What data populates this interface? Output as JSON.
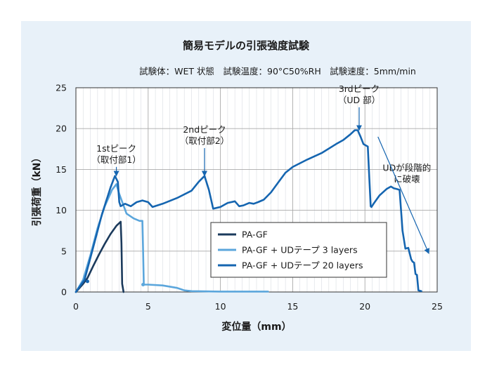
{
  "chart_data": {
    "type": "line",
    "title": "簡易モデルの引張強度試験",
    "subtitle": "試験体：WET 状態　試験温度：90°C50%RH　試験速度：5mm/min",
    "xlabel": "変位量（mm）",
    "ylabel": "引張荷重（kN）",
    "xlim": [
      0,
      25
    ],
    "ylim": [
      0,
      25
    ],
    "xticks": [
      0,
      5,
      10,
      15,
      20,
      25
    ],
    "yticks": [
      0,
      5,
      10,
      15,
      20,
      25
    ],
    "grid": true,
    "legend_position": "center-right",
    "series": [
      {
        "name": "PA-GF",
        "color": "#1b3a5c",
        "x": [
          0,
          0.5,
          0.8,
          1.2,
          1.6,
          2.0,
          2.4,
          2.8,
          3.1,
          3.15,
          3.2,
          3.3
        ],
        "y": [
          0,
          1.0,
          1.7,
          3.2,
          4.6,
          5.9,
          7.1,
          8.1,
          8.6,
          6.0,
          1.0,
          0
        ]
      },
      {
        "name": "PA-GF + UDテープ 3 layers",
        "color": "#5ba6dc",
        "x": [
          0,
          0.5,
          1.0,
          1.5,
          2.0,
          2.5,
          2.8,
          3.0,
          3.5,
          4.0,
          4.4,
          4.6,
          4.65,
          4.7,
          5.0,
          6.0,
          7.0,
          7.5,
          8.0,
          10.0,
          13.3
        ],
        "y": [
          0,
          1.5,
          4.5,
          7.8,
          10.5,
          12.5,
          13.2,
          12.0,
          9.6,
          9.0,
          8.7,
          8.7,
          5.0,
          0.9,
          0.9,
          0.8,
          0.5,
          0.2,
          0.1,
          0.05,
          0.05
        ],
        "markers": [
          {
            "x": 4.65,
            "y": 0.9
          }
        ]
      },
      {
        "name": "PA-GF + UDテープ 20 layers",
        "color": "#1565b0",
        "x": [
          0,
          0.6,
          1.2,
          1.8,
          2.4,
          2.7,
          2.9,
          3.0,
          3.1,
          3.4,
          3.8,
          4.2,
          4.6,
          5.0,
          5.3,
          6.0,
          7.0,
          8.0,
          8.5,
          8.9,
          9.2,
          9.5,
          10.0,
          10.5,
          11.0,
          11.3,
          11.6,
          12.0,
          12.3,
          12.6,
          13.0,
          13.5,
          14.0,
          14.5,
          15.0,
          16.0,
          17.0,
          18.0,
          18.5,
          19.0,
          19.3,
          19.5,
          19.7,
          19.9,
          20.0,
          20.2,
          20.3,
          20.4,
          20.45,
          20.6,
          21.0,
          21.5,
          21.8,
          22.0,
          22.2,
          22.4,
          22.5,
          22.6,
          22.8,
          23.0,
          23.2,
          23.3,
          23.4,
          23.5,
          23.6,
          23.7,
          23.9
        ],
        "y": [
          0,
          1.5,
          5.5,
          9.5,
          12.8,
          14.2,
          13.5,
          11.0,
          10.5,
          10.8,
          10.5,
          11.0,
          11.2,
          11.0,
          10.4,
          10.8,
          11.5,
          12.4,
          13.5,
          14.2,
          12.5,
          10.2,
          10.4,
          10.9,
          11.1,
          10.5,
          10.6,
          10.9,
          10.8,
          11.0,
          11.3,
          12.2,
          13.4,
          14.6,
          15.3,
          16.2,
          17.0,
          18.1,
          18.6,
          19.3,
          19.8,
          19.8,
          19.0,
          18.1,
          18.0,
          17.8,
          14.0,
          10.5,
          10.4,
          10.8,
          11.8,
          12.6,
          12.9,
          12.7,
          12.6,
          12.5,
          10.0,
          7.5,
          5.3,
          5.4,
          4.0,
          3.7,
          3.6,
          2.2,
          2.1,
          0.2,
          0.1
        ],
        "markers": [
          {
            "x": 0.8,
            "y": 1.3
          }
        ]
      }
    ],
    "annotations": [
      {
        "id": "peak1",
        "lines": [
          "1stピーク",
          "（取付部1）"
        ],
        "text_x": 2.8,
        "text_y": 17.2,
        "arrow_x": 2.8,
        "arrow_y": 14.3
      },
      {
        "id": "peak2",
        "lines": [
          "2ndピーク",
          "（取付部2）"
        ],
        "text_x": 8.9,
        "text_y": 19.5,
        "arrow_x": 8.9,
        "arrow_y": 14.3
      },
      {
        "id": "peak3",
        "lines": [
          "3rdピーク",
          "（UD 部）"
        ],
        "text_x": 19.6,
        "text_y": 24.5,
        "arrow_x": 19.6,
        "arrow_y": 19.9
      },
      {
        "id": "ud",
        "lines": [
          "UDが段階的",
          "に破壊"
        ],
        "text_x": 22.9,
        "text_y": 14.8,
        "arrow_x": 24.4,
        "arrow_y": 4.8,
        "arrow_from_x": 20.9,
        "arrow_from_y": 19.0
      }
    ]
  }
}
